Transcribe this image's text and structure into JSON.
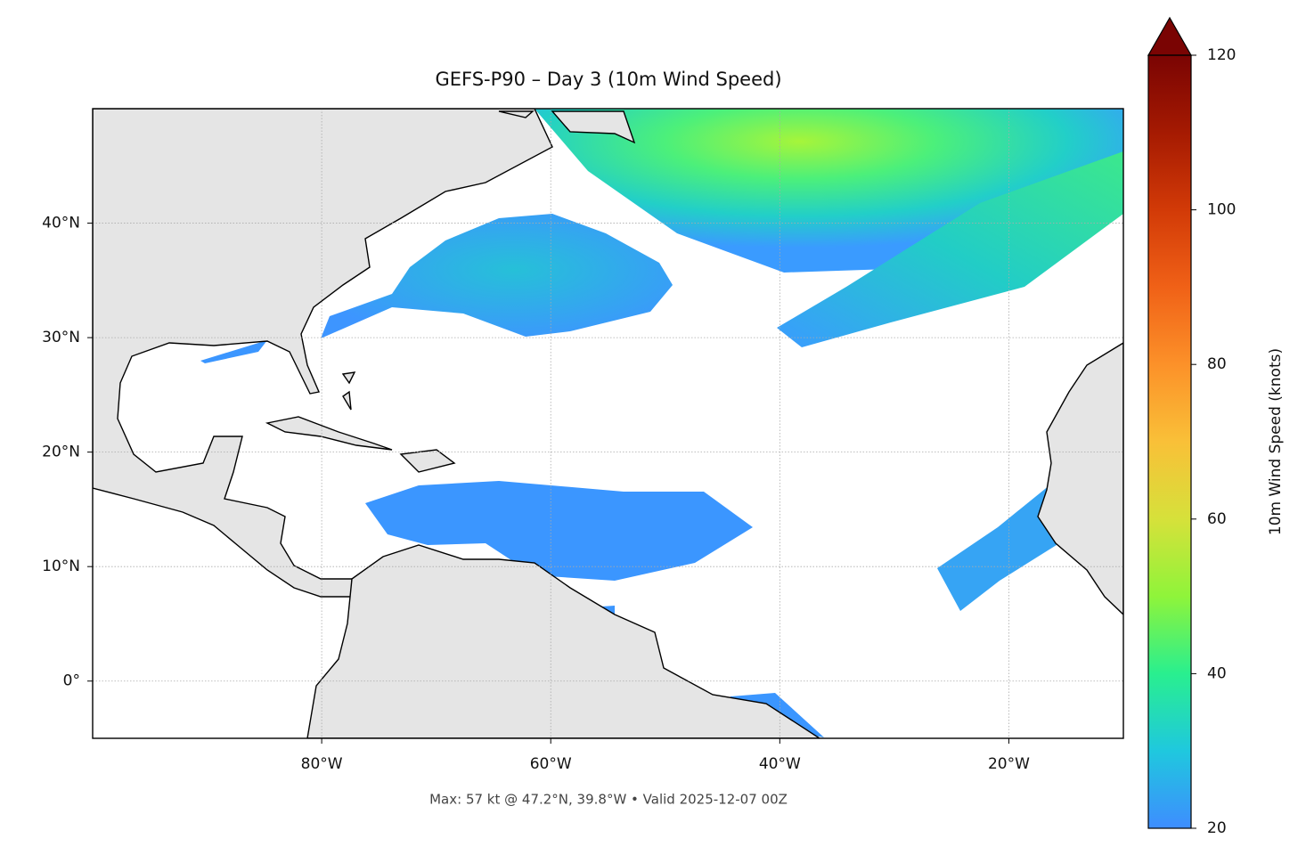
{
  "chart_data": {
    "type": "map",
    "title": "GEFS-P90 – Day 3 (10m Wind Speed)",
    "footnote": "Max: 57 kt @ 47.2°N, 39.8°W • Valid 2025-12-07 00Z",
    "xlim": [
      -100,
      -10
    ],
    "ylim": [
      -5,
      50
    ],
    "xticks": [
      {
        "value": -80,
        "label": "80°W"
      },
      {
        "value": -60,
        "label": "60°W"
      },
      {
        "value": -40,
        "label": "40°W"
      },
      {
        "value": -20,
        "label": "20°W"
      }
    ],
    "yticks": [
      {
        "value": 0,
        "label": "0°"
      },
      {
        "value": 10,
        "label": "10°N"
      },
      {
        "value": 20,
        "label": "20°N"
      },
      {
        "value": 30,
        "label": "30°N"
      },
      {
        "value": 40,
        "label": "40°N"
      }
    ],
    "grid": true,
    "colorbar": {
      "label": "10m Wind Speed (knots)",
      "clim": [
        20,
        120
      ],
      "ticks": [
        20,
        40,
        60,
        80,
        100,
        120
      ],
      "colors": [
        "#3e8dff",
        "#1fc8de",
        "#29ef8f",
        "#8ff43a",
        "#d6e13a",
        "#f9c038",
        "#fc9129",
        "#f06117",
        "#d23a07",
        "#a51a02",
        "#7a0403"
      ]
    }
  }
}
